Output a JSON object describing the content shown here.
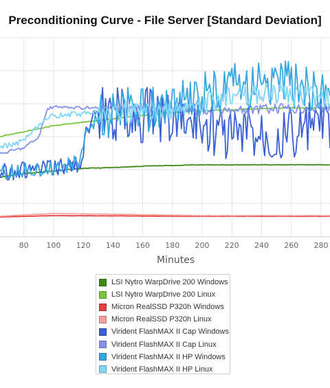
{
  "chart_data": {
    "type": "line",
    "title": "Preconditioning Curve - File Server [Standard Deviation]",
    "xlabel": "Minutes",
    "ylabel": "",
    "xlim": [
      64,
      286
    ],
    "x_ticks": [
      80,
      100,
      120,
      140,
      160,
      180,
      200,
      220,
      240,
      260,
      280
    ],
    "grid": true,
    "legend_position": "bottom-center",
    "series": [
      {
        "name": "LSI Nytro WarpDrive 200 Windows",
        "color": "#3a8c12",
        "x": [
          64,
          80,
          100,
          110,
          120,
          140,
          160,
          180,
          200,
          220,
          240,
          260,
          280,
          286
        ],
        "y": [
          258,
          253,
          249,
          247,
          245,
          244,
          242,
          241,
          240,
          240,
          240,
          240,
          240,
          240
        ]
      },
      {
        "name": "LSI Nytro WarpDrive 200 Linux",
        "color": "#79c63a",
        "x": [
          64,
          80,
          100,
          120,
          140,
          160,
          180,
          200,
          220,
          240,
          260,
          280,
          286
        ],
        "y": [
          199,
          192,
          183,
          178,
          173,
          168,
          164,
          161,
          160,
          158,
          157,
          157,
          157
        ]
      },
      {
        "name": "Micron RealSSD P320h Windows",
        "color": "#e53e3e",
        "x": [
          64,
          100,
          200,
          286
        ],
        "y": [
          316,
          314,
          315,
          315
        ]
      },
      {
        "name": "Micron RealSSD P320h Linux",
        "color": "#f5a09a",
        "x": [
          64,
          80,
          100,
          140,
          200,
          260,
          286
        ],
        "y": [
          315,
          313,
          311,
          312,
          314,
          314,
          314
        ]
      },
      {
        "name": "Virident FlashMAX II Cap Windows",
        "color": "#3a5fd9",
        "x": [
          64,
          80,
          100,
          110,
          118,
          122,
          126,
          130,
          140,
          160,
          180,
          200,
          220,
          240,
          260,
          280,
          286
        ],
        "y": [
          250,
          248,
          245,
          242,
          238,
          195,
          175,
          168,
          168,
          168,
          170,
          180,
          195,
          190,
          195,
          180,
          185
        ]
      },
      {
        "name": "Virident FlashMAX II Cap Linux",
        "color": "#8592ec",
        "x": [
          64,
          80,
          90,
          96,
          100,
          120,
          140,
          160,
          180,
          200,
          220,
          240,
          260,
          280,
          286
        ],
        "y": [
          224,
          215,
          200,
          158,
          156,
          157,
          158,
          158,
          155,
          160,
          162,
          160,
          158,
          156,
          156
        ]
      },
      {
        "name": "Virident FlashMAX II HP Windows",
        "color": "#35a7e0",
        "x": [
          64,
          80,
          100,
          110,
          118,
          122,
          130,
          140,
          160,
          180,
          200,
          220,
          240,
          260,
          280,
          286
        ],
        "y": [
          252,
          248,
          244,
          240,
          236,
          190,
          172,
          165,
          160,
          152,
          140,
          128,
          120,
          125,
          135,
          135
        ]
      },
      {
        "name": "Virident FlashMAX II HP Linux",
        "color": "#7fd6f6",
        "x": [
          64,
          80,
          90,
          100,
          120,
          140,
          160,
          180,
          200,
          220,
          240,
          260,
          280,
          286
        ],
        "y": [
          215,
          205,
          185,
          168,
          165,
          165,
          163,
          160,
          150,
          140,
          135,
          138,
          140,
          140
        ]
      }
    ]
  }
}
